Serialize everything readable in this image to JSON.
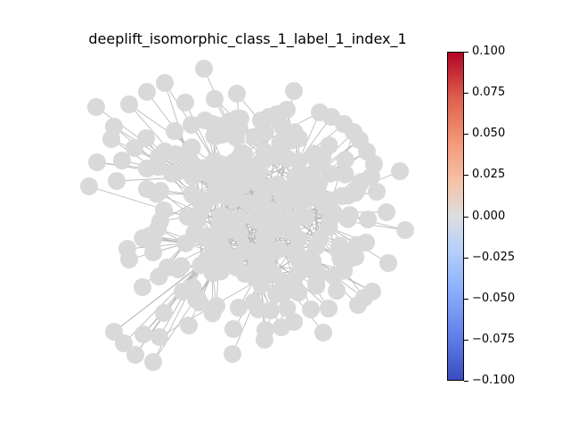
{
  "title": "deeplift_isomorphic_class_1_label_1_index_1",
  "colors": {
    "node_fill": "#d9d9d9",
    "edge": "#bbbbbb",
    "colormap": "coolwarm"
  },
  "colorbar": {
    "min": -0.1,
    "max": 0.1,
    "ticks": [
      "0.100",
      "0.075",
      "0.050",
      "0.025",
      "0.000",
      "−0.025",
      "−0.050",
      "−0.075",
      "−0.100"
    ]
  }
}
